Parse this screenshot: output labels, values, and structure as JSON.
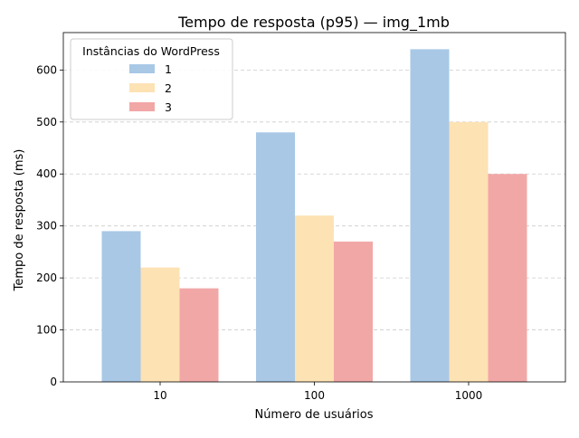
{
  "chart_data": {
    "type": "bar",
    "title": "Tempo de resposta (p95) — img_1mb",
    "xlabel": "Número de usuários",
    "ylabel": "Tempo de resposta (ms)",
    "categories": [
      "10",
      "100",
      "1000"
    ],
    "series": [
      {
        "name": "1",
        "values": [
          290,
          480,
          640
        ],
        "color": "#a8c8e6"
      },
      {
        "name": "2",
        "values": [
          220,
          320,
          500
        ],
        "color": "#fde2b4"
      },
      {
        "name": "3",
        "values": [
          180,
          270,
          400
        ],
        "color": "#f2a7a7"
      }
    ],
    "ylim": [
      0,
      672
    ],
    "yticks": [
      0,
      100,
      200,
      300,
      400,
      500,
      600
    ],
    "grid": "y-dashed",
    "legend": {
      "title": "Instâncias do WordPress",
      "placement": "top-left"
    }
  }
}
